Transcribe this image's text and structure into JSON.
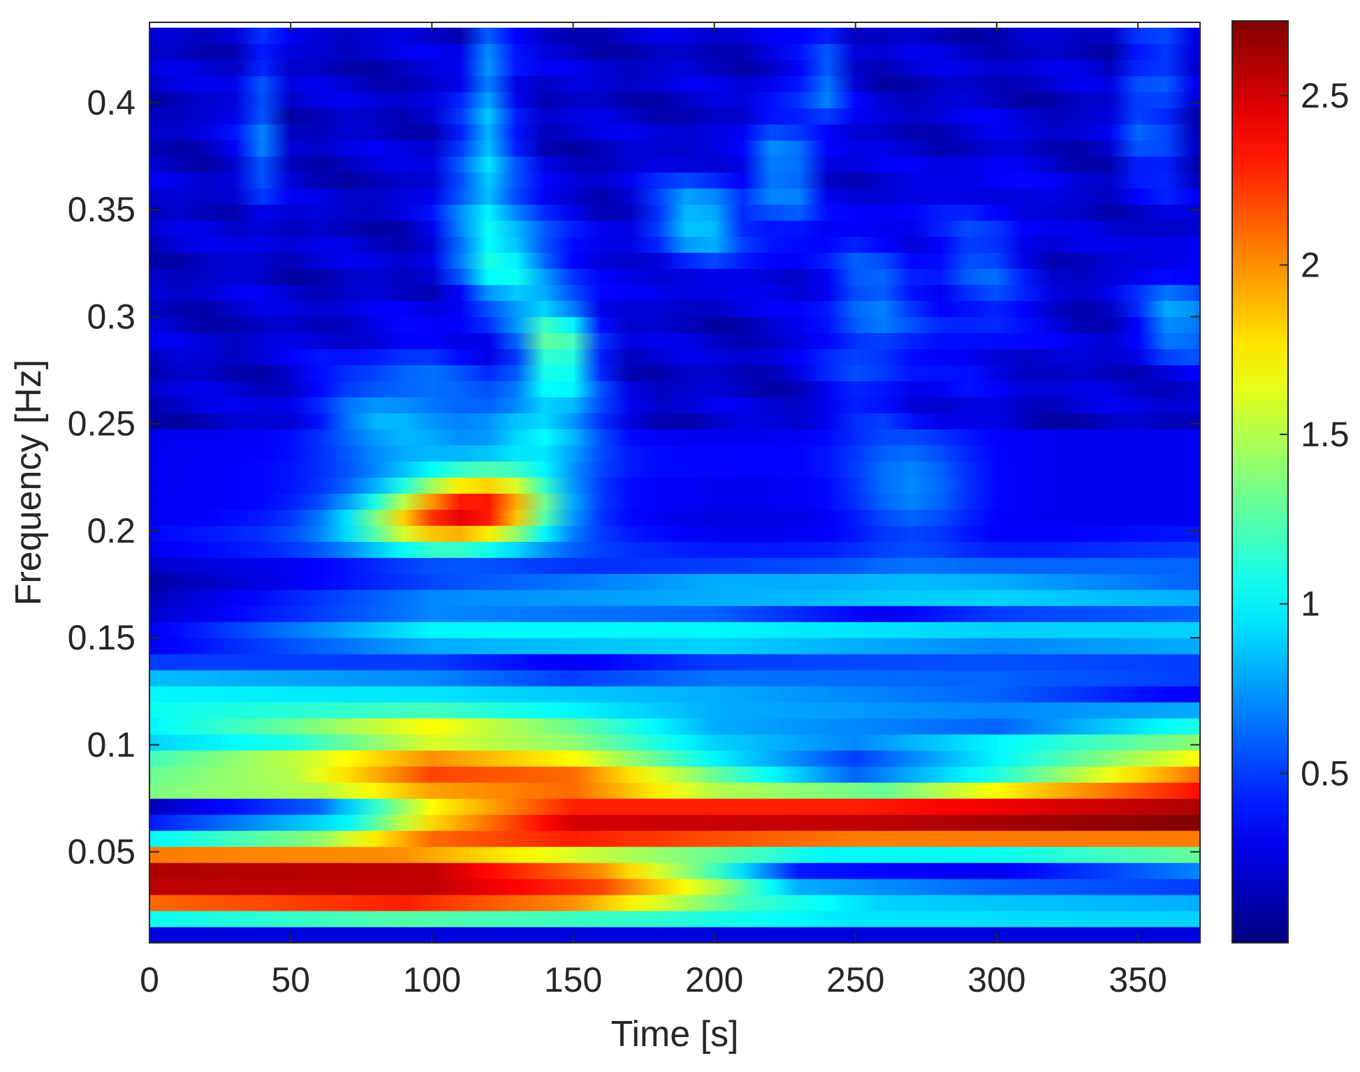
{
  "chart_data": {
    "type": "heatmap",
    "title": "",
    "xlabel": "Time [s]",
    "ylabel": "Frequency [Hz]",
    "xlim": [
      0,
      372
    ],
    "ylim": [
      0.0075,
      0.4375
    ],
    "xticks": [
      0,
      50,
      100,
      150,
      200,
      250,
      300,
      350
    ],
    "xtick_labels": [
      "0",
      "50",
      "100",
      "150",
      "200",
      "250",
      "300",
      "350"
    ],
    "yticks": [
      0.05,
      0.1,
      0.15,
      0.2,
      0.25,
      0.3,
      0.35,
      0.4
    ],
    "ytick_labels": [
      "0.05",
      "0.1",
      "0.15",
      "0.2",
      "0.25",
      "0.3",
      "0.35",
      "0.4"
    ],
    "colormap": "jet",
    "clim": [
      0,
      2.72
    ],
    "colorbar_ticks": [
      0.5,
      1,
      1.5,
      2,
      2.5
    ],
    "colorbar_tick_labels": [
      "0.5",
      "1",
      "1.5",
      "2",
      "2.5"
    ],
    "grid": false,
    "frequency_bin_hz": 0.0075,
    "time_step_s": 10,
    "band_profiles": [
      {
        "f": 0.011,
        "points": [
          [
            0,
            0.25
          ],
          [
            372,
            0.25
          ]
        ]
      },
      {
        "f": 0.0185,
        "points": [
          [
            0,
            1.05
          ],
          [
            90,
            1.25
          ],
          [
            180,
            1.15
          ],
          [
            250,
            0.95
          ],
          [
            372,
            0.9
          ]
        ]
      },
      {
        "f": 0.026,
        "points": [
          [
            0,
            2.1
          ],
          [
            90,
            2.3
          ],
          [
            150,
            2.0
          ],
          [
            210,
            1.2
          ],
          [
            260,
            0.9
          ],
          [
            372,
            0.8
          ]
        ]
      },
      {
        "f": 0.0335,
        "points": [
          [
            0,
            2.55
          ],
          [
            100,
            2.55
          ],
          [
            160,
            2.2
          ],
          [
            200,
            1.5
          ],
          [
            230,
            0.8
          ],
          [
            300,
            0.6
          ],
          [
            372,
            0.5
          ]
        ]
      },
      {
        "f": 0.041,
        "points": [
          [
            0,
            2.6
          ],
          [
            100,
            2.55
          ],
          [
            160,
            2.0
          ],
          [
            200,
            1.2
          ],
          [
            230,
            0.4
          ],
          [
            300,
            0.3
          ],
          [
            372,
            0.7
          ]
        ]
      },
      {
        "f": 0.0485,
        "points": [
          [
            0,
            2.05
          ],
          [
            90,
            2.0
          ],
          [
            150,
            1.6
          ],
          [
            200,
            1.3
          ],
          [
            240,
            1.0
          ],
          [
            300,
            1.05
          ],
          [
            372,
            1.3
          ]
        ]
      },
      {
        "f": 0.056,
        "points": [
          [
            0,
            1.0
          ],
          [
            60,
            1.4
          ],
          [
            100,
            2.1
          ],
          [
            150,
            2.3
          ],
          [
            250,
            2.05
          ],
          [
            372,
            2.05
          ]
        ]
      },
      {
        "f": 0.0635,
        "points": [
          [
            0,
            0.4
          ],
          [
            70,
            1.0
          ],
          [
            100,
            1.8
          ],
          [
            150,
            2.5
          ],
          [
            250,
            2.55
          ],
          [
            372,
            2.72
          ]
        ]
      },
      {
        "f": 0.071,
        "points": [
          [
            0,
            0.15
          ],
          [
            60,
            0.6
          ],
          [
            100,
            1.7
          ],
          [
            150,
            2.3
          ],
          [
            250,
            2.3
          ],
          [
            372,
            2.6
          ]
        ]
      },
      {
        "f": 0.0785,
        "points": [
          [
            0,
            1.35
          ],
          [
            60,
            1.5
          ],
          [
            100,
            1.95
          ],
          [
            150,
            2.1
          ],
          [
            200,
            1.5
          ],
          [
            260,
            1.3
          ],
          [
            320,
            1.9
          ],
          [
            372,
            2.35
          ]
        ]
      },
      {
        "f": 0.086,
        "points": [
          [
            0,
            1.3
          ],
          [
            50,
            1.5
          ],
          [
            100,
            2.2
          ],
          [
            150,
            2.1
          ],
          [
            200,
            1.3
          ],
          [
            250,
            0.6
          ],
          [
            300,
            1.1
          ],
          [
            372,
            2.1
          ]
        ]
      },
      {
        "f": 0.0935,
        "points": [
          [
            0,
            1.2
          ],
          [
            60,
            1.6
          ],
          [
            100,
            2.0
          ],
          [
            150,
            1.7
          ],
          [
            200,
            1.0
          ],
          [
            250,
            0.5
          ],
          [
            300,
            1.0
          ],
          [
            372,
            1.7
          ]
        ]
      },
      {
        "f": 0.101,
        "points": [
          [
            0,
            0.9
          ],
          [
            50,
            1.1
          ],
          [
            100,
            1.6
          ],
          [
            150,
            1.4
          ],
          [
            200,
            0.9
          ],
          [
            250,
            0.7
          ],
          [
            300,
            1.0
          ],
          [
            372,
            1.4
          ]
        ]
      },
      {
        "f": 0.1085,
        "points": [
          [
            0,
            1.0
          ],
          [
            50,
            1.3
          ],
          [
            100,
            1.7
          ],
          [
            150,
            1.3
          ],
          [
            200,
            0.8
          ],
          [
            250,
            0.7
          ],
          [
            300,
            0.6
          ],
          [
            372,
            1.1
          ]
        ]
      },
      {
        "f": 0.116,
        "points": [
          [
            0,
            1.05
          ],
          [
            100,
            1.2
          ],
          [
            200,
            0.8
          ],
          [
            300,
            0.7
          ],
          [
            372,
            0.8
          ]
        ]
      },
      {
        "f": 0.1235,
        "points": [
          [
            0,
            1.0
          ],
          [
            100,
            0.95
          ],
          [
            200,
            0.8
          ],
          [
            300,
            0.6
          ],
          [
            372,
            0.3
          ]
        ]
      },
      {
        "f": 0.131,
        "points": [
          [
            0,
            0.85
          ],
          [
            100,
            0.7
          ],
          [
            150,
            0.5
          ],
          [
            200,
            0.65
          ],
          [
            300,
            0.6
          ],
          [
            372,
            0.5
          ]
        ]
      },
      {
        "f": 0.1385,
        "points": [
          [
            0,
            0.5
          ],
          [
            100,
            0.5
          ],
          [
            150,
            0.3
          ],
          [
            200,
            0.5
          ],
          [
            300,
            0.55
          ],
          [
            372,
            0.5
          ]
        ]
      },
      {
        "f": 0.146,
        "points": [
          [
            0,
            0.3
          ],
          [
            100,
            0.8
          ],
          [
            200,
            0.9
          ],
          [
            300,
            0.7
          ],
          [
            372,
            0.8
          ]
        ]
      },
      {
        "f": 0.1535,
        "points": [
          [
            0,
            0.3
          ],
          [
            100,
            1.0
          ],
          [
            200,
            1.0
          ],
          [
            300,
            0.9
          ],
          [
            372,
            0.9
          ]
        ]
      },
      {
        "f": 0.161,
        "points": [
          [
            0,
            0.2
          ],
          [
            100,
            0.7
          ],
          [
            200,
            0.6
          ],
          [
            260,
            0.3
          ],
          [
            300,
            0.5
          ],
          [
            372,
            0.6
          ]
        ]
      },
      {
        "f": 0.1685,
        "points": [
          [
            0,
            0.15
          ],
          [
            100,
            0.7
          ],
          [
            200,
            0.8
          ],
          [
            300,
            0.9
          ],
          [
            372,
            0.8
          ]
        ]
      },
      {
        "f": 0.176,
        "points": [
          [
            0,
            0.1
          ],
          [
            100,
            0.5
          ],
          [
            200,
            0.8
          ],
          [
            300,
            0.8
          ],
          [
            372,
            0.6
          ]
        ]
      },
      {
        "f": 0.1835,
        "points": [
          [
            0,
            0.2
          ],
          [
            100,
            0.4
          ],
          [
            200,
            0.5
          ],
          [
            300,
            0.6
          ],
          [
            372,
            0.6
          ]
        ]
      },
      {
        "f": 0.191,
        "points": [
          [
            0,
            0.3
          ],
          [
            100,
            0.6
          ],
          [
            200,
            0.4
          ],
          [
            300,
            0.4
          ],
          [
            372,
            0.5
          ]
        ]
      },
      {
        "f": 0.1985,
        "points": [
          [
            0,
            0.35
          ],
          [
            100,
            0.6
          ],
          [
            200,
            0.3
          ],
          [
            300,
            0.3
          ],
          [
            372,
            0.4
          ]
        ]
      },
      {
        "f": 0.206,
        "points": [
          [
            0,
            0.3
          ],
          [
            100,
            0.5
          ],
          [
            200,
            0.25
          ],
          [
            300,
            0.3
          ],
          [
            372,
            0.3
          ]
        ]
      },
      {
        "f": 0.2135,
        "points": [
          [
            0,
            0.3
          ],
          [
            100,
            0.4
          ],
          [
            200,
            0.3
          ],
          [
            300,
            0.3
          ],
          [
            372,
            0.3
          ]
        ]
      },
      {
        "f": 0.221,
        "points": [
          [
            0,
            0.3
          ],
          [
            100,
            0.4
          ],
          [
            200,
            0.3
          ],
          [
            300,
            0.3
          ],
          [
            372,
            0.3
          ]
        ]
      },
      {
        "f": 0.2285,
        "points": [
          [
            0,
            0.3
          ],
          [
            100,
            0.4
          ],
          [
            200,
            0.35
          ],
          [
            300,
            0.3
          ],
          [
            372,
            0.3
          ]
        ]
      },
      {
        "f": 0.236,
        "points": [
          [
            0,
            0.3
          ],
          [
            100,
            0.35
          ],
          [
            200,
            0.35
          ],
          [
            300,
            0.3
          ],
          [
            372,
            0.3
          ]
        ]
      },
      {
        "f": 0.2435,
        "points": [
          [
            0,
            0.3
          ],
          [
            100,
            0.3
          ],
          [
            200,
            0.3
          ],
          [
            300,
            0.3
          ],
          [
            372,
            0.3
          ]
        ]
      }
    ],
    "hotspots": [
      {
        "t": 120,
        "f": 0.2125,
        "value": 1.6,
        "spread_t": 18,
        "spread_f": 0.012
      },
      {
        "t": 95,
        "f": 0.205,
        "value": 1.0,
        "spread_t": 20,
        "spread_f": 0.01
      },
      {
        "t": 145,
        "f": 0.287,
        "value": 1.05,
        "spread_t": 9,
        "spread_f": 0.016
      },
      {
        "t": 128,
        "f": 0.325,
        "value": 0.75,
        "spread_t": 12,
        "spread_f": 0.018
      },
      {
        "t": 118,
        "f": 0.362,
        "value": 0.65,
        "spread_t": 8,
        "spread_f": 0.025
      },
      {
        "t": 122,
        "f": 0.42,
        "value": 0.55,
        "spread_t": 5,
        "spread_f": 0.025
      },
      {
        "t": 140,
        "f": 0.25,
        "value": 0.7,
        "spread_t": 14,
        "spread_f": 0.015
      },
      {
        "t": 90,
        "f": 0.255,
        "value": 0.6,
        "spread_t": 20,
        "spread_f": 0.02
      },
      {
        "t": 195,
        "f": 0.345,
        "value": 0.7,
        "spread_t": 12,
        "spread_f": 0.015
      },
      {
        "t": 225,
        "f": 0.37,
        "value": 0.6,
        "spread_t": 6,
        "spread_f": 0.025
      },
      {
        "t": 255,
        "f": 0.3,
        "value": 0.45,
        "spread_t": 12,
        "spread_f": 0.03
      },
      {
        "t": 295,
        "f": 0.32,
        "value": 0.35,
        "spread_t": 12,
        "spread_f": 0.03
      },
      {
        "t": 355,
        "f": 0.4,
        "value": 0.6,
        "spread_t": 5,
        "spread_f": 0.03
      },
      {
        "t": 365,
        "f": 0.3,
        "value": 0.6,
        "spread_t": 10,
        "spread_f": 0.015
      },
      {
        "t": 38,
        "f": 0.39,
        "value": 0.5,
        "spread_t": 4,
        "spread_f": 0.03
      },
      {
        "t": 270,
        "f": 0.22,
        "value": 0.4,
        "spread_t": 15,
        "spread_f": 0.02
      },
      {
        "t": 240,
        "f": 0.41,
        "value": 0.4,
        "spread_t": 5,
        "spread_f": 0.02
      }
    ]
  }
}
